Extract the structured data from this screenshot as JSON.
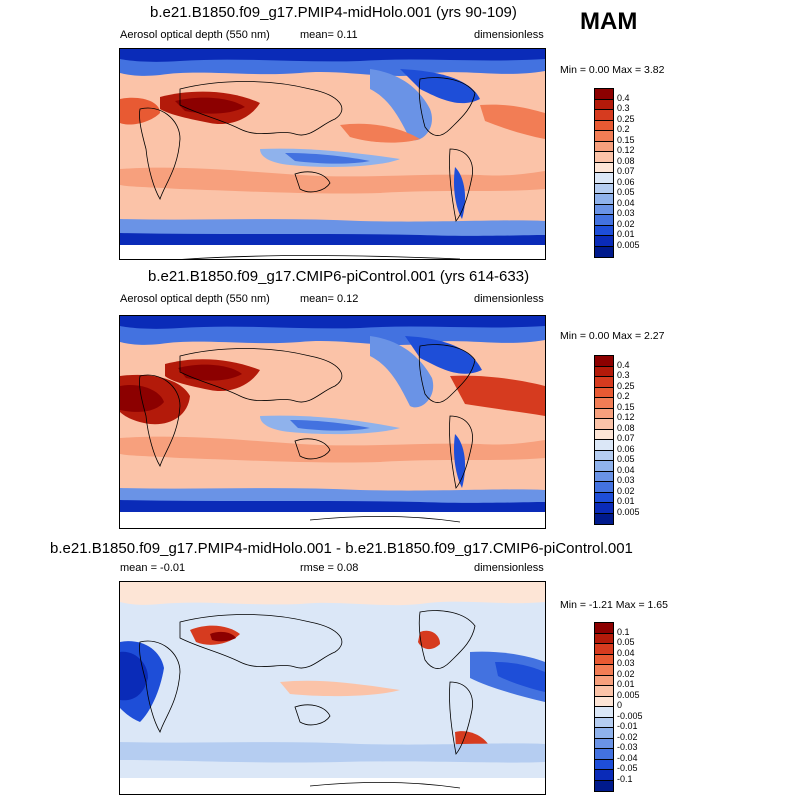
{
  "season": "MAM",
  "panels": [
    {
      "title": "b.e21.B1850.f09_g17.PMIP4-midHolo.001 (yrs 90-109)",
      "left_label": "Aerosol optical depth (550 nm)",
      "center_label": "mean=   0.11",
      "right_label": "dimensionless",
      "minmax": "Min =   0.00  Max =   3.82",
      "colorbar_levels": [
        "0.4",
        "0.3",
        "0.25",
        "0.2",
        "0.15",
        "0.12",
        "0.08",
        "0.07",
        "0.06",
        "0.05",
        "0.04",
        "0.03",
        "0.02",
        "0.01",
        "0.005"
      ],
      "colorbar_colors": [
        "#8c0000",
        "#b31a0a",
        "#d63b1f",
        "#e85a33",
        "#f27d55",
        "#f7a07d",
        "#fbc3a8",
        "#fde5d6",
        "#dbe7f7",
        "#b5cdf1",
        "#8fb2ec",
        "#6a93e6",
        "#4372e0",
        "#1e4ed8",
        "#0a2bb8",
        "#001a8c"
      ]
    },
    {
      "title": "b.e21.B1850.f09_g17.CMIP6-piControl.001 (yrs 614-633)",
      "left_label": "Aerosol optical depth (550 nm)",
      "center_label": "mean=   0.12",
      "right_label": "dimensionless",
      "minmax": "Min =   0.00  Max =   2.27",
      "colorbar_levels": [
        "0.4",
        "0.3",
        "0.25",
        "0.2",
        "0.15",
        "0.12",
        "0.08",
        "0.07",
        "0.06",
        "0.05",
        "0.04",
        "0.03",
        "0.02",
        "0.01",
        "0.005"
      ],
      "colorbar_colors": [
        "#8c0000",
        "#b31a0a",
        "#d63b1f",
        "#e85a33",
        "#f27d55",
        "#f7a07d",
        "#fbc3a8",
        "#fde5d6",
        "#dbe7f7",
        "#b5cdf1",
        "#8fb2ec",
        "#6a93e6",
        "#4372e0",
        "#1e4ed8",
        "#0a2bb8",
        "#001a8c"
      ]
    },
    {
      "title": "b.e21.B1850.f09_g17.PMIP4-midHolo.001 - b.e21.B1850.f09_g17.CMIP6-piControl.001",
      "left_label": "mean =   -0.01",
      "center_label": "rmse =   0.08",
      "right_label": "dimensionless",
      "minmax": "Min =  -1.21  Max =   1.65",
      "colorbar_levels": [
        "0.1",
        "0.05",
        "0.04",
        "0.03",
        "0.02",
        "0.01",
        "0.005",
        "0",
        "-0.005",
        "-0.01",
        "-0.02",
        "-0.03",
        "-0.04",
        "-0.05",
        "-0.1"
      ],
      "colorbar_colors": [
        "#8c0000",
        "#b31a0a",
        "#d63b1f",
        "#e85a33",
        "#f27d55",
        "#f7a07d",
        "#fbc3a8",
        "#fde5d6",
        "#dbe7f7",
        "#b5cdf1",
        "#8fb2ec",
        "#6a93e6",
        "#4372e0",
        "#1e4ed8",
        "#0a2bb8",
        "#001a8c"
      ]
    }
  ]
}
